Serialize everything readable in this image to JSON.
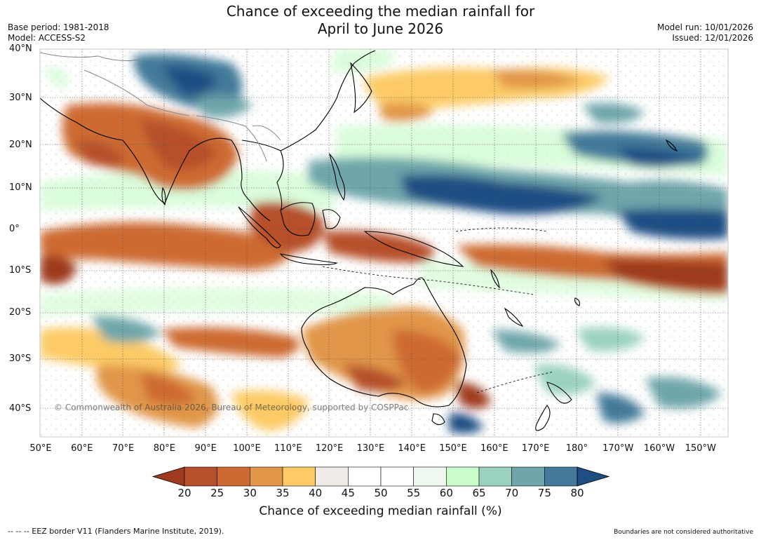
{
  "header": {
    "title_line1": "Chance of exceeding the median rainfall for",
    "title_line2": "April to June 2026",
    "base_period": "Base period: 1981-2018",
    "model": "Model: ACCESS-S2",
    "model_run": "Model run: 10/01/2026",
    "issued": "Issued: 12/01/2026"
  },
  "map": {
    "copyright": "© Commonwealth of Australia 2026, Bureau of Meteorology, supported by COSPPac",
    "lat_labels": [
      "40°N",
      "30°N",
      "20°N",
      "10°N",
      "0°",
      "10°S",
      "20°S",
      "30°S",
      "40°S"
    ],
    "lon_labels": [
      "50°E",
      "60°E",
      "70°E",
      "80°E",
      "90°E",
      "100°E",
      "110°E",
      "120°E",
      "130°E",
      "140°E",
      "150°E",
      "160°E",
      "170°E",
      "180°",
      "170°W",
      "160°W",
      "150°W"
    ]
  },
  "colorbar": {
    "ticks": [
      "20",
      "25",
      "30",
      "35",
      "40",
      "45",
      "50",
      "55",
      "60",
      "65",
      "70",
      "75",
      "80"
    ],
    "colors": [
      "#9e3a1e",
      "#b6502a",
      "#cd6a33",
      "#e19649",
      "#fccb66",
      "#efebe6",
      "#ffffff",
      "#ffffff",
      "#eef8ee",
      "#cbfccc",
      "#9bd2bf",
      "#6ea6aa",
      "#437a99",
      "#1f4e83"
    ],
    "label": "Chance of exceeding median rainfall (%)"
  },
  "footer": {
    "eez_note": "--  --  -- EEZ border V11 (Flanders Marine Institute, 2019).",
    "boundaries_note": "Boundaries are not considered authoritative"
  }
}
